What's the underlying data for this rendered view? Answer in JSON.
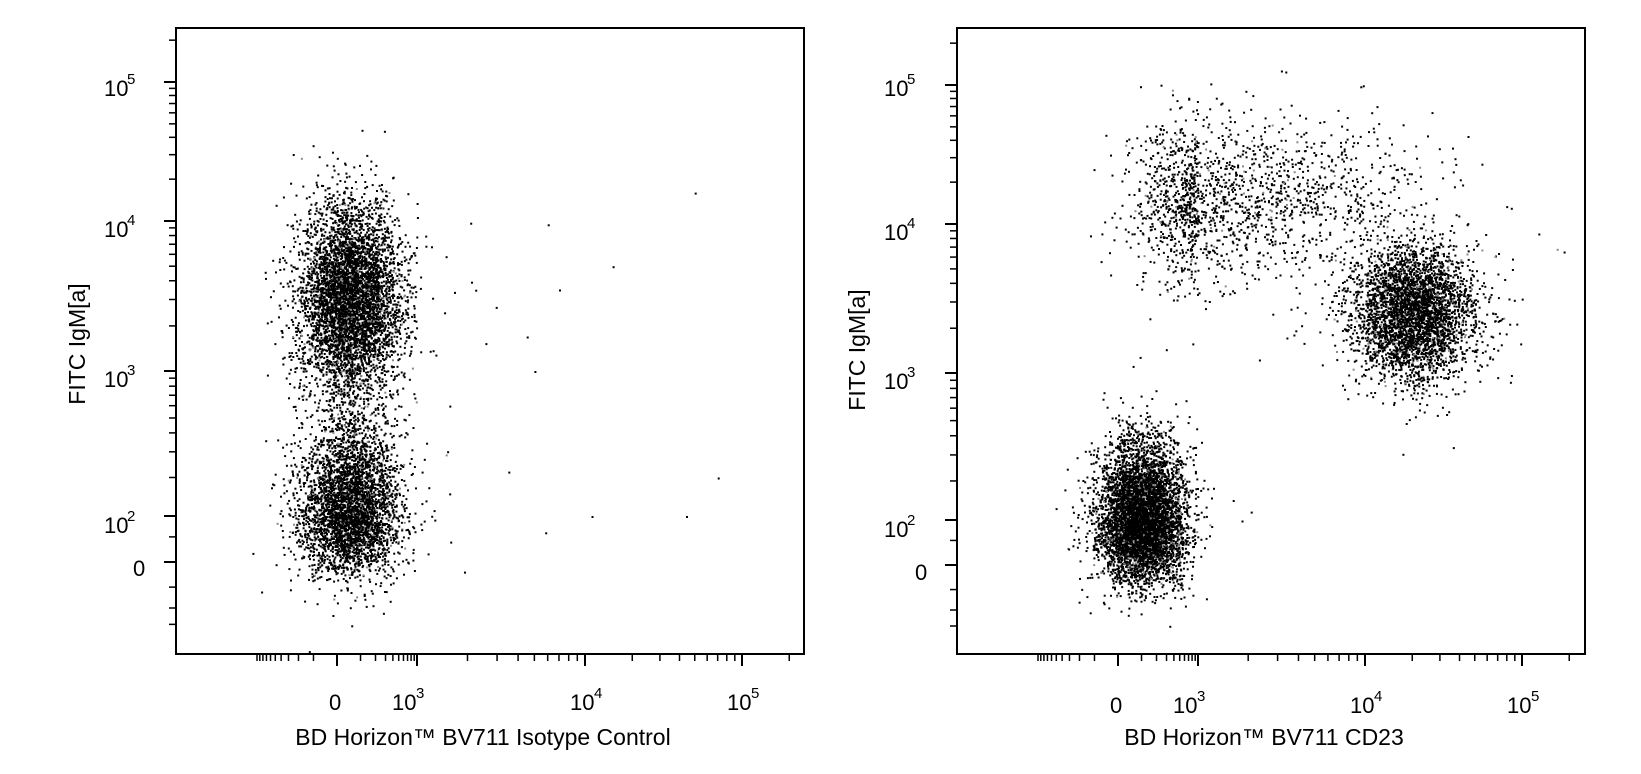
{
  "chart_data": [
    {
      "type": "scatter",
      "xlabel": "BD Horizon™ BV711 Isotype Control",
      "ylabel": "FITC IgM[a]",
      "scale": "biexponential (log with linear region near 0)",
      "x_ticks": [
        "0",
        "10^3",
        "10^4",
        "10^5"
      ],
      "y_ticks": [
        "0",
        "10^2",
        "10^3",
        "10^4",
        "10^5"
      ],
      "xlim": [
        -1000,
        250000
      ],
      "ylim": [
        -150,
        250000
      ],
      "populations": [
        {
          "name": "",
          "x_center": 50,
          "y_center": 120,
          "approx_points": 3800
        },
        {
          "name": "",
          "x_center": 50,
          "y_center": 3000,
          "approx_points": 5200
        }
      ],
      "outliers": [
        [
          6000,
          9500
        ],
        [
          15000,
          5000
        ],
        [
          7000,
          3500
        ],
        [
          50000,
          16000
        ],
        [
          70000,
          200
        ],
        [
          44000,
          100
        ],
        [
          11000,
          100
        ],
        [
          4500,
          1700
        ],
        [
          5000,
          1000
        ],
        [
          3500,
          220
        ],
        [
          5800,
          60
        ]
      ]
    },
    {
      "type": "scatter",
      "xlabel": "BD Horizon™ BV711 CD23",
      "ylabel": "FITC IgM[a]",
      "scale": "biexponential (log with linear region near 0)",
      "x_ticks": [
        "0",
        "10^3",
        "10^4",
        "10^5"
      ],
      "y_ticks": [
        "0",
        "10^2",
        "10^3",
        "10^4",
        "10^5"
      ],
      "xlim": [
        -1000,
        250000
      ],
      "ylim": [
        -150,
        250000
      ],
      "populations": [
        {
          "name": "",
          "x_center": 100,
          "y_center": 100,
          "approx_points": 6000
        },
        {
          "name": "",
          "x_center": 20000,
          "y_center": 2500,
          "approx_points": 3800
        },
        {
          "name": "",
          "x_center": 1500,
          "y_center": 15000,
          "approx_points": 1800
        }
      ]
    }
  ]
}
